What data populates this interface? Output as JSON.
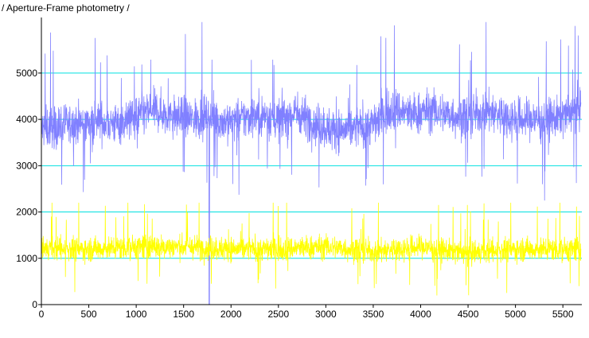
{
  "title": "/ Aperture-Frame photometry /",
  "chart_data": {
    "type": "line",
    "title": "/ Aperture-Frame photometry /",
    "xlabel": "",
    "ylabel": "",
    "xlim": [
      0,
      5700
    ],
    "ylim": [
      0,
      6200
    ],
    "x_ticks": [
      0,
      500,
      1000,
      1500,
      2000,
      2500,
      3000,
      3500,
      4000,
      4500,
      5000,
      5500
    ],
    "y_ticks": [
      0,
      1000,
      2000,
      3000,
      4000,
      5000
    ],
    "gridlines_y": [
      1000,
      2000,
      3000,
      4000,
      5000
    ],
    "grid_color": "#00e0e0",
    "series": [
      {
        "color": "#8080ff",
        "style": "noisy-line",
        "x_start": 0,
        "x_end": 5690,
        "typical_range": [
          3300,
          4700
        ],
        "max_spikes": [
          5600,
          6100
        ],
        "dropout": {
          "x": 1770,
          "value": 0
        },
        "mean_profile": [
          [
            0,
            3800
          ],
          [
            200,
            3850
          ],
          [
            400,
            3900
          ],
          [
            600,
            3950
          ],
          [
            800,
            3900
          ],
          [
            1000,
            4050
          ],
          [
            1200,
            4200
          ],
          [
            1400,
            4050
          ],
          [
            1600,
            4000
          ],
          [
            1770,
            4100
          ],
          [
            1900,
            3950
          ],
          [
            2100,
            4000
          ],
          [
            2300,
            4100
          ],
          [
            2500,
            4000
          ],
          [
            2700,
            4150
          ],
          [
            2900,
            3900
          ],
          [
            3100,
            3750
          ],
          [
            3300,
            3800
          ],
          [
            3500,
            3900
          ],
          [
            3700,
            4250
          ],
          [
            3900,
            4100
          ],
          [
            4100,
            4200
          ],
          [
            4300,
            4100
          ],
          [
            4500,
            4050
          ],
          [
            4700,
            4200
          ],
          [
            4900,
            4050
          ],
          [
            5100,
            4000
          ],
          [
            5300,
            4000
          ],
          [
            5500,
            4050
          ],
          [
            5690,
            4250
          ]
        ]
      },
      {
        "color": "#ffff00",
        "style": "noisy-line",
        "x_start": 0,
        "x_end": 5690,
        "typical_range": [
          800,
          1600
        ],
        "max_spikes": [
          2100,
          2200
        ],
        "mean_profile": [
          [
            0,
            1200
          ],
          [
            500,
            1200
          ],
          [
            1000,
            1250
          ],
          [
            1500,
            1250
          ],
          [
            2000,
            1200
          ],
          [
            2500,
            1200
          ],
          [
            3000,
            1250
          ],
          [
            3500,
            1150
          ],
          [
            4000,
            1250
          ],
          [
            4500,
            1100
          ],
          [
            5000,
            1200
          ],
          [
            5690,
            1200
          ]
        ]
      }
    ],
    "grid": true,
    "legend": "none"
  }
}
